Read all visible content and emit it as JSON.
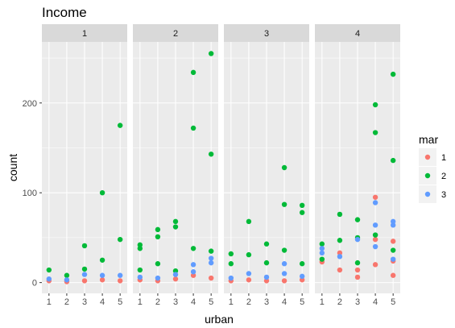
{
  "chart_data": {
    "type": "scatter",
    "title": "Income",
    "xlabel": "urban",
    "ylabel": "count",
    "x_ticks": [
      "1",
      "2",
      "3",
      "4",
      "5"
    ],
    "y_ticks": [
      "0",
      "100",
      "200"
    ],
    "xlim": [
      0.6,
      5.4
    ],
    "ylim": [
      -12,
      268
    ],
    "grid": true,
    "legend": {
      "title": "mar",
      "position": "right",
      "entries": [
        {
          "label": "1",
          "color": "#F8766D"
        },
        {
          "label": "2",
          "color": "#00BA38"
        },
        {
          "label": "3",
          "color": "#619CFF"
        }
      ]
    },
    "facets": [
      {
        "label": "1",
        "points": [
          {
            "x": 1,
            "y": 2,
            "mar": "1"
          },
          {
            "x": 1,
            "y": 14,
            "mar": "2"
          },
          {
            "x": 1,
            "y": 4,
            "mar": "3"
          },
          {
            "x": 2,
            "y": 1,
            "mar": "1"
          },
          {
            "x": 2,
            "y": 8,
            "mar": "2"
          },
          {
            "x": 2,
            "y": 3,
            "mar": "3"
          },
          {
            "x": 3,
            "y": 2,
            "mar": "1"
          },
          {
            "x": 3,
            "y": 41,
            "mar": "2"
          },
          {
            "x": 3,
            "y": 15,
            "mar": "2"
          },
          {
            "x": 3,
            "y": 9,
            "mar": "3"
          },
          {
            "x": 4,
            "y": 3,
            "mar": "1"
          },
          {
            "x": 4,
            "y": 100,
            "mar": "2"
          },
          {
            "x": 4,
            "y": 25,
            "mar": "2"
          },
          {
            "x": 4,
            "y": 8,
            "mar": "3"
          },
          {
            "x": 5,
            "y": 2,
            "mar": "1"
          },
          {
            "x": 5,
            "y": 175,
            "mar": "2"
          },
          {
            "x": 5,
            "y": 48,
            "mar": "2"
          },
          {
            "x": 5,
            "y": 8,
            "mar": "3"
          }
        ]
      },
      {
        "label": "2",
        "points": [
          {
            "x": 1,
            "y": 3,
            "mar": "1"
          },
          {
            "x": 1,
            "y": 42,
            "mar": "2"
          },
          {
            "x": 1,
            "y": 38,
            "mar": "2"
          },
          {
            "x": 1,
            "y": 14,
            "mar": "2"
          },
          {
            "x": 1,
            "y": 6,
            "mar": "3"
          },
          {
            "x": 2,
            "y": 2,
            "mar": "1"
          },
          {
            "x": 2,
            "y": 59,
            "mar": "2"
          },
          {
            "x": 2,
            "y": 51,
            "mar": "2"
          },
          {
            "x": 2,
            "y": 21,
            "mar": "2"
          },
          {
            "x": 2,
            "y": 5,
            "mar": "3"
          },
          {
            "x": 3,
            "y": 4,
            "mar": "1"
          },
          {
            "x": 3,
            "y": 68,
            "mar": "2"
          },
          {
            "x": 3,
            "y": 62,
            "mar": "2"
          },
          {
            "x": 3,
            "y": 13,
            "mar": "2"
          },
          {
            "x": 3,
            "y": 9,
            "mar": "3"
          },
          {
            "x": 4,
            "y": 8,
            "mar": "1"
          },
          {
            "x": 4,
            "y": 234,
            "mar": "2"
          },
          {
            "x": 4,
            "y": 172,
            "mar": "2"
          },
          {
            "x": 4,
            "y": 38,
            "mar": "2"
          },
          {
            "x": 4,
            "y": 20,
            "mar": "3"
          },
          {
            "x": 4,
            "y": 12,
            "mar": "3"
          },
          {
            "x": 5,
            "y": 5,
            "mar": "1"
          },
          {
            "x": 5,
            "y": 255,
            "mar": "2"
          },
          {
            "x": 5,
            "y": 143,
            "mar": "2"
          },
          {
            "x": 5,
            "y": 35,
            "mar": "2"
          },
          {
            "x": 5,
            "y": 27,
            "mar": "3"
          },
          {
            "x": 5,
            "y": 22,
            "mar": "3"
          }
        ]
      },
      {
        "label": "3",
        "points": [
          {
            "x": 1,
            "y": 2,
            "mar": "1"
          },
          {
            "x": 1,
            "y": 32,
            "mar": "2"
          },
          {
            "x": 1,
            "y": 21,
            "mar": "2"
          },
          {
            "x": 1,
            "y": 5,
            "mar": "3"
          },
          {
            "x": 2,
            "y": 3,
            "mar": "1"
          },
          {
            "x": 2,
            "y": 68,
            "mar": "2"
          },
          {
            "x": 2,
            "y": 31,
            "mar": "2"
          },
          {
            "x": 2,
            "y": 10,
            "mar": "3"
          },
          {
            "x": 3,
            "y": 2,
            "mar": "1"
          },
          {
            "x": 3,
            "y": 43,
            "mar": "2"
          },
          {
            "x": 3,
            "y": 22,
            "mar": "2"
          },
          {
            "x": 3,
            "y": 6,
            "mar": "3"
          },
          {
            "x": 4,
            "y": 2,
            "mar": "1"
          },
          {
            "x": 4,
            "y": 128,
            "mar": "2"
          },
          {
            "x": 4,
            "y": 87,
            "mar": "2"
          },
          {
            "x": 4,
            "y": 36,
            "mar": "2"
          },
          {
            "x": 4,
            "y": 21,
            "mar": "3"
          },
          {
            "x": 4,
            "y": 10,
            "mar": "3"
          },
          {
            "x": 5,
            "y": 3,
            "mar": "1"
          },
          {
            "x": 5,
            "y": 86,
            "mar": "2"
          },
          {
            "x": 5,
            "y": 78,
            "mar": "2"
          },
          {
            "x": 5,
            "y": 21,
            "mar": "2"
          },
          {
            "x": 5,
            "y": 7,
            "mar": "3"
          }
        ]
      },
      {
        "label": "4",
        "points": [
          {
            "x": 1,
            "y": 23,
            "mar": "1"
          },
          {
            "x": 1,
            "y": 43,
            "mar": "2"
          },
          {
            "x": 1,
            "y": 26,
            "mar": "2"
          },
          {
            "x": 1,
            "y": 38,
            "mar": "3"
          },
          {
            "x": 1,
            "y": 33,
            "mar": "3"
          },
          {
            "x": 2,
            "y": 14,
            "mar": "1"
          },
          {
            "x": 2,
            "y": 33,
            "mar": "1"
          },
          {
            "x": 2,
            "y": 76,
            "mar": "2"
          },
          {
            "x": 2,
            "y": 47,
            "mar": "2"
          },
          {
            "x": 2,
            "y": 29,
            "mar": "3"
          },
          {
            "x": 3,
            "y": 6,
            "mar": "1"
          },
          {
            "x": 3,
            "y": 14,
            "mar": "1"
          },
          {
            "x": 3,
            "y": 70,
            "mar": "2"
          },
          {
            "x": 3,
            "y": 50,
            "mar": "2"
          },
          {
            "x": 3,
            "y": 22,
            "mar": "2"
          },
          {
            "x": 3,
            "y": 48,
            "mar": "3"
          },
          {
            "x": 4,
            "y": 20,
            "mar": "1"
          },
          {
            "x": 4,
            "y": 48,
            "mar": "1"
          },
          {
            "x": 4,
            "y": 95,
            "mar": "1"
          },
          {
            "x": 4,
            "y": 198,
            "mar": "2"
          },
          {
            "x": 4,
            "y": 167,
            "mar": "2"
          },
          {
            "x": 4,
            "y": 53,
            "mar": "2"
          },
          {
            "x": 4,
            "y": 89,
            "mar": "3"
          },
          {
            "x": 4,
            "y": 64,
            "mar": "3"
          },
          {
            "x": 4,
            "y": 40,
            "mar": "3"
          },
          {
            "x": 5,
            "y": 8,
            "mar": "1"
          },
          {
            "x": 5,
            "y": 46,
            "mar": "1"
          },
          {
            "x": 5,
            "y": 24,
            "mar": "1"
          },
          {
            "x": 5,
            "y": 232,
            "mar": "2"
          },
          {
            "x": 5,
            "y": 136,
            "mar": "2"
          },
          {
            "x": 5,
            "y": 36,
            "mar": "2"
          },
          {
            "x": 5,
            "y": 68,
            "mar": "3"
          },
          {
            "x": 5,
            "y": 64,
            "mar": "3"
          },
          {
            "x": 5,
            "y": 26,
            "mar": "3"
          }
        ]
      }
    ]
  }
}
